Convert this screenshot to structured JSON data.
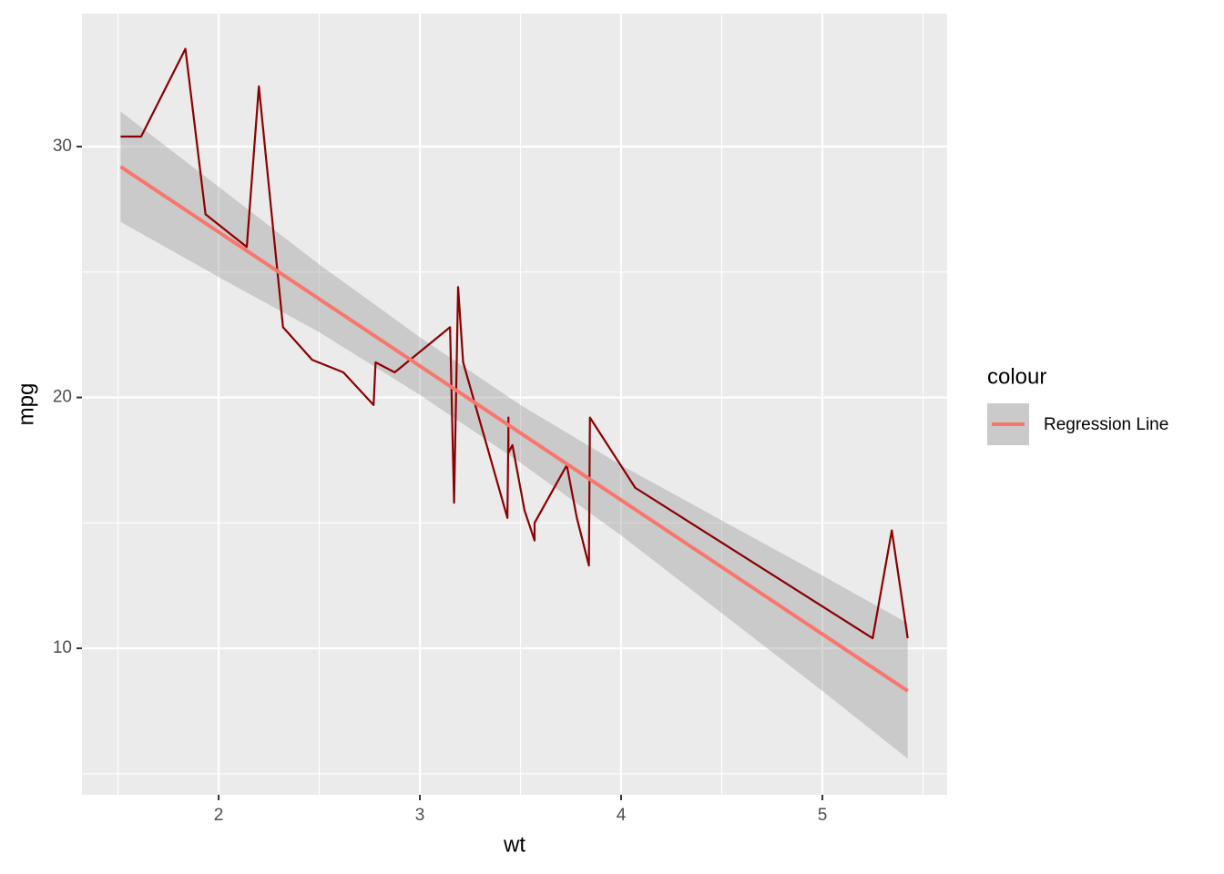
{
  "chart_data": {
    "type": "line",
    "x_label": "wt",
    "y_label": "mpg",
    "x": [
      1.513,
      1.615,
      1.835,
      1.935,
      2.14,
      2.2,
      2.32,
      2.465,
      2.62,
      2.77,
      2.78,
      2.875,
      3.15,
      3.17,
      3.19,
      3.215,
      3.435,
      3.44,
      3.44,
      3.44,
      3.46,
      3.52,
      3.57,
      3.57,
      3.73,
      3.78,
      3.84,
      3.845,
      4.07,
      5.25,
      5.345,
      5.424
    ],
    "values": [
      30.4,
      30.4,
      33.9,
      27.3,
      26.0,
      32.4,
      22.8,
      21.5,
      21.0,
      19.7,
      21.4,
      21.0,
      22.8,
      15.8,
      24.4,
      21.4,
      15.2,
      18.7,
      19.2,
      17.8,
      18.1,
      15.5,
      14.3,
      15.0,
      17.3,
      15.2,
      13.3,
      19.2,
      16.4,
      10.4,
      14.7,
      10.4
    ],
    "color": "#8b0000",
    "regression": {
      "name": "Regression Line",
      "color": "#f8766d",
      "x": [
        1.513,
        5.424
      ],
      "values": [
        29.2,
        8.3
      ],
      "band": {
        "color": "#999999",
        "x": [
          1.513,
          2,
          2.5,
          3,
          3.5,
          4,
          4.5,
          5,
          5.424
        ],
        "lower": [
          27.0,
          24.8,
          22.6,
          20.1,
          17.4,
          14.5,
          11.4,
          8.3,
          5.6
        ],
        "upper": [
          31.4,
          28.4,
          25.3,
          22.4,
          19.7,
          17.3,
          15.1,
          12.9,
          11.0
        ]
      }
    },
    "legend_title": "colour",
    "xlim": [
      1.321,
      5.62
    ],
    "ylim": [
      4.16,
      35.3
    ],
    "xticks": [
      2,
      3,
      4,
      5
    ],
    "yticks": [
      10,
      20,
      30
    ],
    "minor_xticks": [
      1.5,
      2.5,
      3.5,
      4.5,
      5.5
    ],
    "minor_yticks": [
      5,
      15,
      25
    ],
    "grid": true
  }
}
